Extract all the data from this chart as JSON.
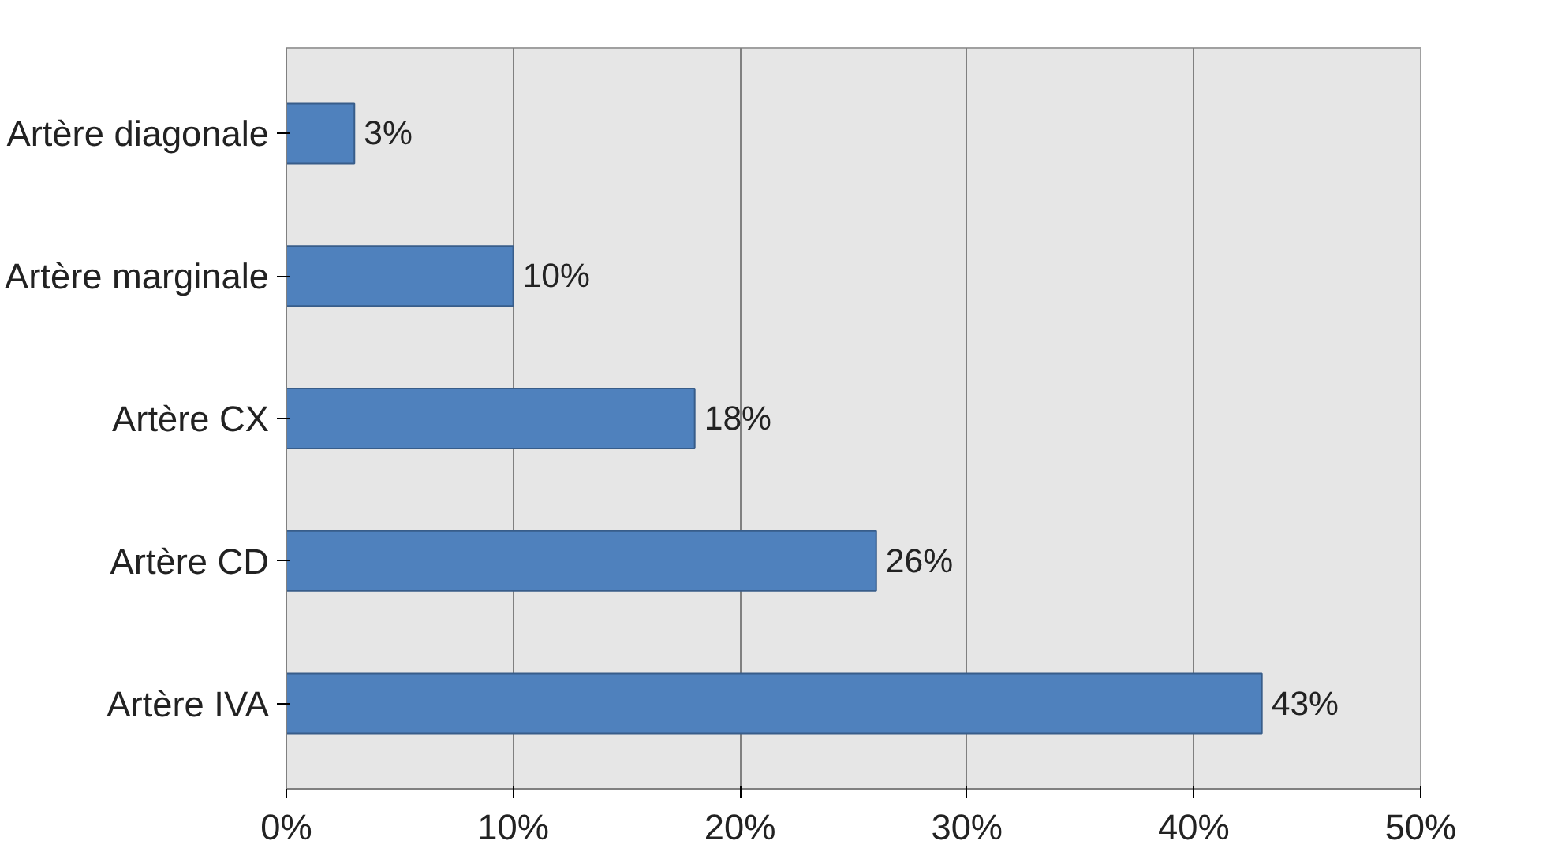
{
  "chart_data": {
    "type": "bar",
    "orientation": "horizontal",
    "categories": [
      "Artère diagonale",
      "Artère marginale",
      "Artère CX",
      "Artère CD",
      "Artère IVA"
    ],
    "values": [
      3,
      10,
      18,
      26,
      43
    ],
    "value_labels": [
      "3%",
      "10%",
      "18%",
      "26%",
      "43%"
    ],
    "color": "#4f81bd",
    "xlim": [
      0,
      50
    ],
    "xticks": [
      {
        "value": 0,
        "label": "0%"
      },
      {
        "value": 10,
        "label": "10%"
      },
      {
        "value": 20,
        "label": "20%"
      },
      {
        "value": 30,
        "label": "30%"
      },
      {
        "value": 40,
        "label": "40%"
      },
      {
        "value": 50,
        "label": "50%"
      }
    ],
    "grid": "x"
  }
}
